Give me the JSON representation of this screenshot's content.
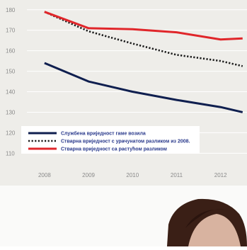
{
  "colors": {
    "official": "#0f1f4f",
    "real_2008": "#1a1a1a",
    "real_growing": "#e0262a",
    "grid": "#ffffff",
    "background": "#eeede9"
  },
  "chart_data": {
    "type": "line",
    "title": "",
    "xlabel": "",
    "ylabel": "",
    "x": [
      2008,
      2009,
      2010,
      2011,
      2012,
      2012.5
    ],
    "xlim": [
      2007.6,
      2012.6
    ],
    "ylim": [
      107,
      182
    ],
    "y_ticks": [
      110,
      120,
      130,
      140,
      150,
      160,
      170,
      180
    ],
    "x_ticks": [
      2008,
      2009,
      2010,
      2011,
      2012
    ],
    "grid": true,
    "legend_position": "bottom-left",
    "series": [
      {
        "name": "Службена вриједност гаме возила",
        "style": "solid",
        "color_key": "official",
        "values": [
          154,
          145,
          140,
          136,
          132.5,
          130
        ]
      },
      {
        "name": "Стварна вриједност с урачунатом разликом из 2008.",
        "style": "dotted",
        "color_key": "real_2008",
        "values": [
          179,
          169.5,
          163.5,
          158,
          155,
          152.5
        ]
      },
      {
        "name": "Стварна вриједност са растућом разликом",
        "style": "solid",
        "color_key": "real_growing",
        "values": [
          179,
          171,
          170.5,
          169,
          165.5,
          166
        ]
      }
    ]
  }
}
